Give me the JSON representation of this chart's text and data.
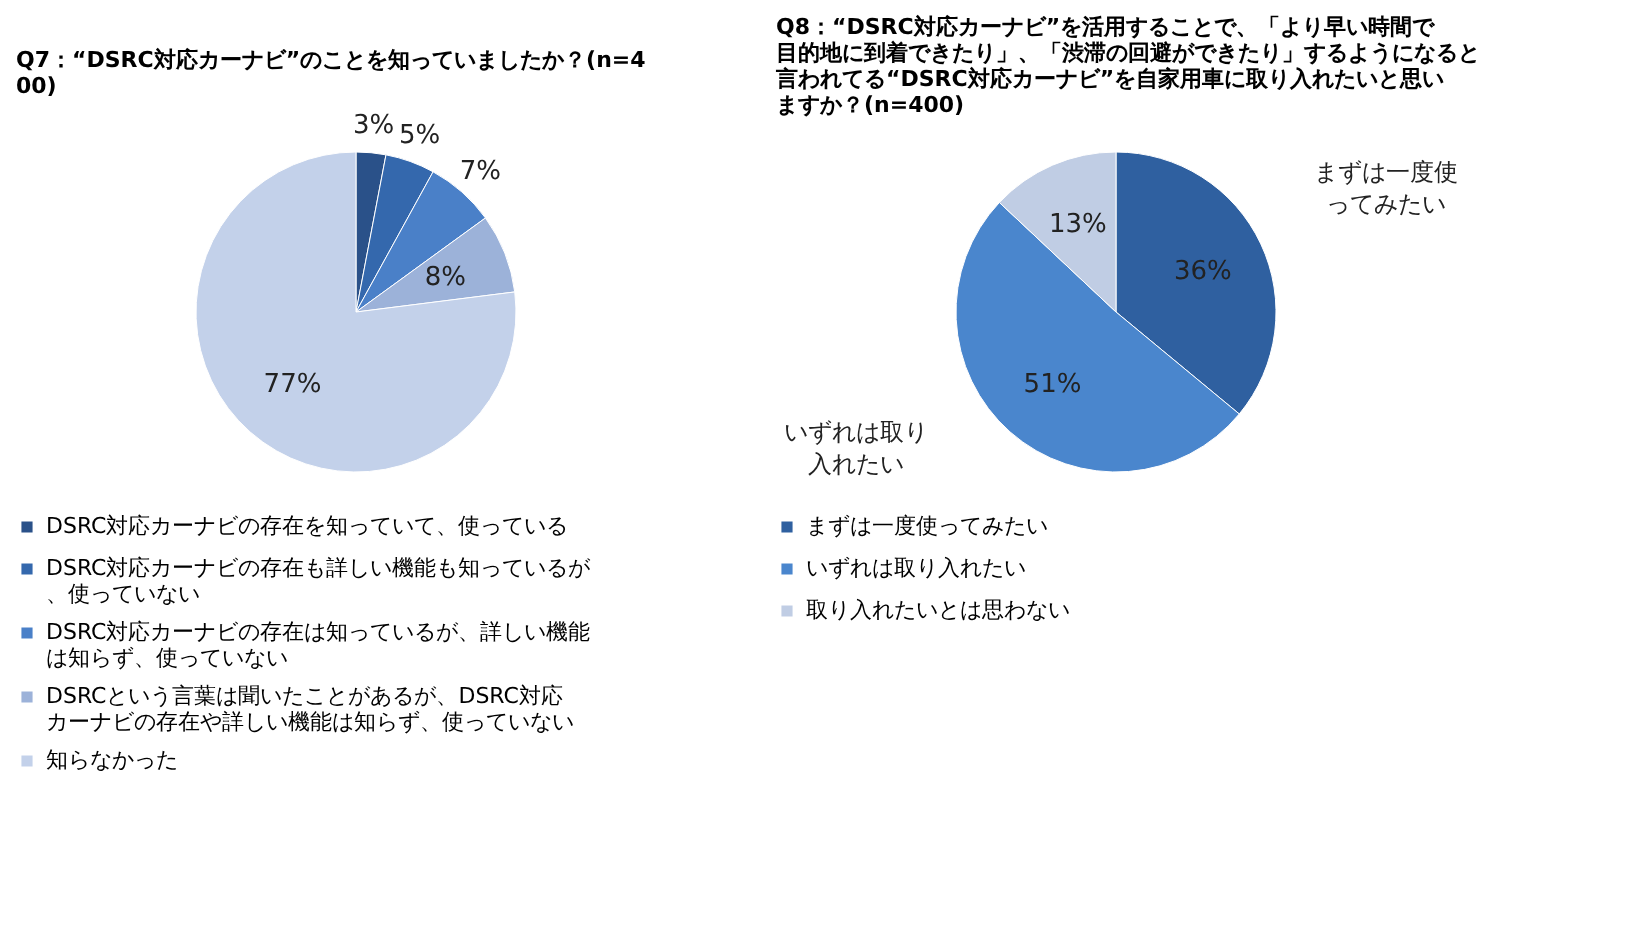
{
  "chart_data": [
    {
      "type": "pie",
      "title": "Q7：“DSRC対応カーナビ”のことを知っていましたか？(n=400)",
      "categories": [
        "DSRC対応カーナビの存在を知っていて、使っている",
        "DSRC対応カーナビの存在も詳しい機能も知っているが、使っていない",
        "DSRC対応カーナビの存在は知っているが、詳しい機能は知らず、使っていない",
        "DSRCという言葉は聞いたことがあるが、DSRC対応カーナビの存在や詳しい機能は知らず、使っていない",
        "知らなかった"
      ],
      "values": [
        3,
        5,
        7,
        8,
        77
      ],
      "value_labels": [
        "3%",
        "5%",
        "7%",
        "8%",
        "77%"
      ],
      "colors": [
        "#2a5189",
        "#3468ad",
        "#4a80c8",
        "#9cb2d9",
        "#c3d1ea"
      ],
      "legend": "bottom"
    },
    {
      "type": "pie",
      "title": "Q8：“DSRC対応カーナビ”を活用することで、「より早い時間で目的地に到着できたり」、「渋滞の回避ができたり」するようになると言われてる“DSRC対応カーナビ”を自家用車に取り入れたいと思いますか？(n=400)",
      "categories": [
        "まずは一度使ってみたい",
        "いずれは取り入れたい",
        "取り入れたいとは思わない"
      ],
      "values": [
        36,
        51,
        13
      ],
      "value_labels": [
        "36%",
        "51%",
        "13%"
      ],
      "colors": [
        "#2f60a0",
        "#4a86cd",
        "#c0cde4"
      ],
      "legend": "bottom",
      "annotations": [
        "まずは一度使ってみたい",
        "いずれは取り入れたい"
      ]
    }
  ]
}
